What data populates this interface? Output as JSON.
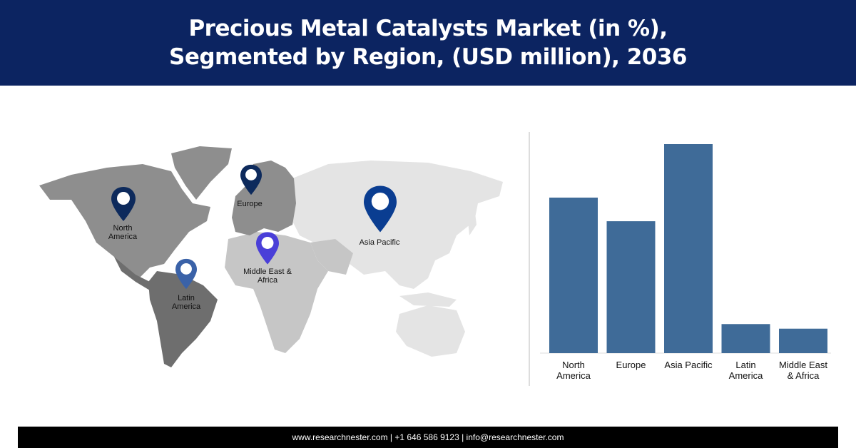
{
  "header": {
    "title_line1": "Precious Metal Catalysts Market (in %),",
    "title_line2": "Segmented by Region, (USD million), 2036"
  },
  "map": {
    "pins": [
      {
        "label_line1": "North",
        "label_line2": "America",
        "color": "#0d2a5c"
      },
      {
        "label_line1": "Europe",
        "label_line2": "",
        "color": "#0d2a5c"
      },
      {
        "label_line1": "Asia Pacific",
        "label_line2": "",
        "color": "#0a3d91"
      },
      {
        "label_line1": "Middle East &",
        "label_line2": "Africa",
        "color": "#4a3fd8"
      },
      {
        "label_line1": "Latin",
        "label_line2": "America",
        "color": "#3a62a8"
      }
    ]
  },
  "chart_data": {
    "type": "bar",
    "title": "",
    "xlabel": "",
    "ylabel": "",
    "categories": [
      {
        "line1": "North",
        "line2": "America"
      },
      {
        "line1": "Europe",
        "line2": ""
      },
      {
        "line1": "Asia Pacific",
        "line2": ""
      },
      {
        "line1": "Latin",
        "line2": "America"
      },
      {
        "line1": "Middle East",
        "line2": "& Africa"
      }
    ],
    "values": [
      0.744,
      0.631,
      1.0,
      0.139,
      0.117
    ],
    "ylim": [
      0,
      1
    ],
    "grid": false,
    "bar_color": "#3f6b98"
  },
  "footer": {
    "contact": "www.researchnester.com | +1 646 586 9123 | info@researchnester.com"
  }
}
